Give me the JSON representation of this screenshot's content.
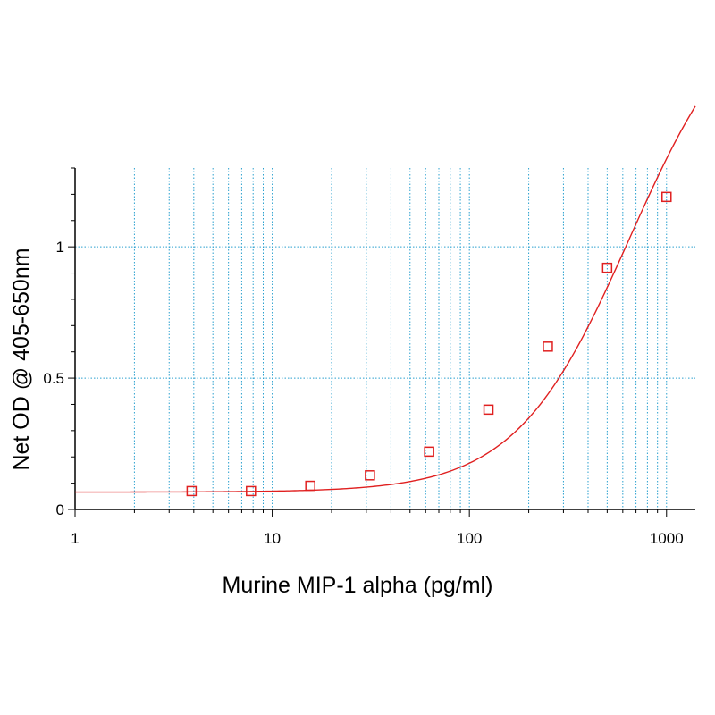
{
  "chart_data": {
    "type": "scatter",
    "x_scale": "log",
    "xlabel": "Murine MIP-1 alpha (pg/ml)",
    "ylabel": "Net OD @ 405-650nm",
    "xlim": [
      1,
      1400
    ],
    "ylim": [
      0,
      1.3
    ],
    "x_ticks": [
      {
        "value": 1,
        "label": "1"
      },
      {
        "value": 10,
        "label": "10"
      },
      {
        "value": 100,
        "label": "100"
      },
      {
        "value": 1000,
        "label": "1000"
      }
    ],
    "y_ticks": [
      {
        "value": 0,
        "label": "0"
      },
      {
        "value": 0.5,
        "label": "0.5"
      },
      {
        "value": 1,
        "label": "1"
      }
    ],
    "grid": true,
    "series": [
      {
        "marker": "square-open",
        "x": [
          3.9,
          7.8,
          15.6,
          31.3,
          62.5,
          125,
          250,
          500,
          1000
        ],
        "y": [
          0.07,
          0.07,
          0.09,
          0.13,
          0.22,
          0.38,
          0.62,
          0.92,
          1.19
        ]
      }
    ],
    "fit_curve": {
      "type": "4PL",
      "bottom": 0.066,
      "top": 2.0,
      "ec50": 650,
      "hill": 1.5,
      "x_range": [
        1,
        1400
      ]
    },
    "colors": {
      "series": "#e02020",
      "grid": "#2aa0cf",
      "axis": "#000000",
      "plot_bg": "#ffffff",
      "page_bg": "#ffffff"
    }
  }
}
